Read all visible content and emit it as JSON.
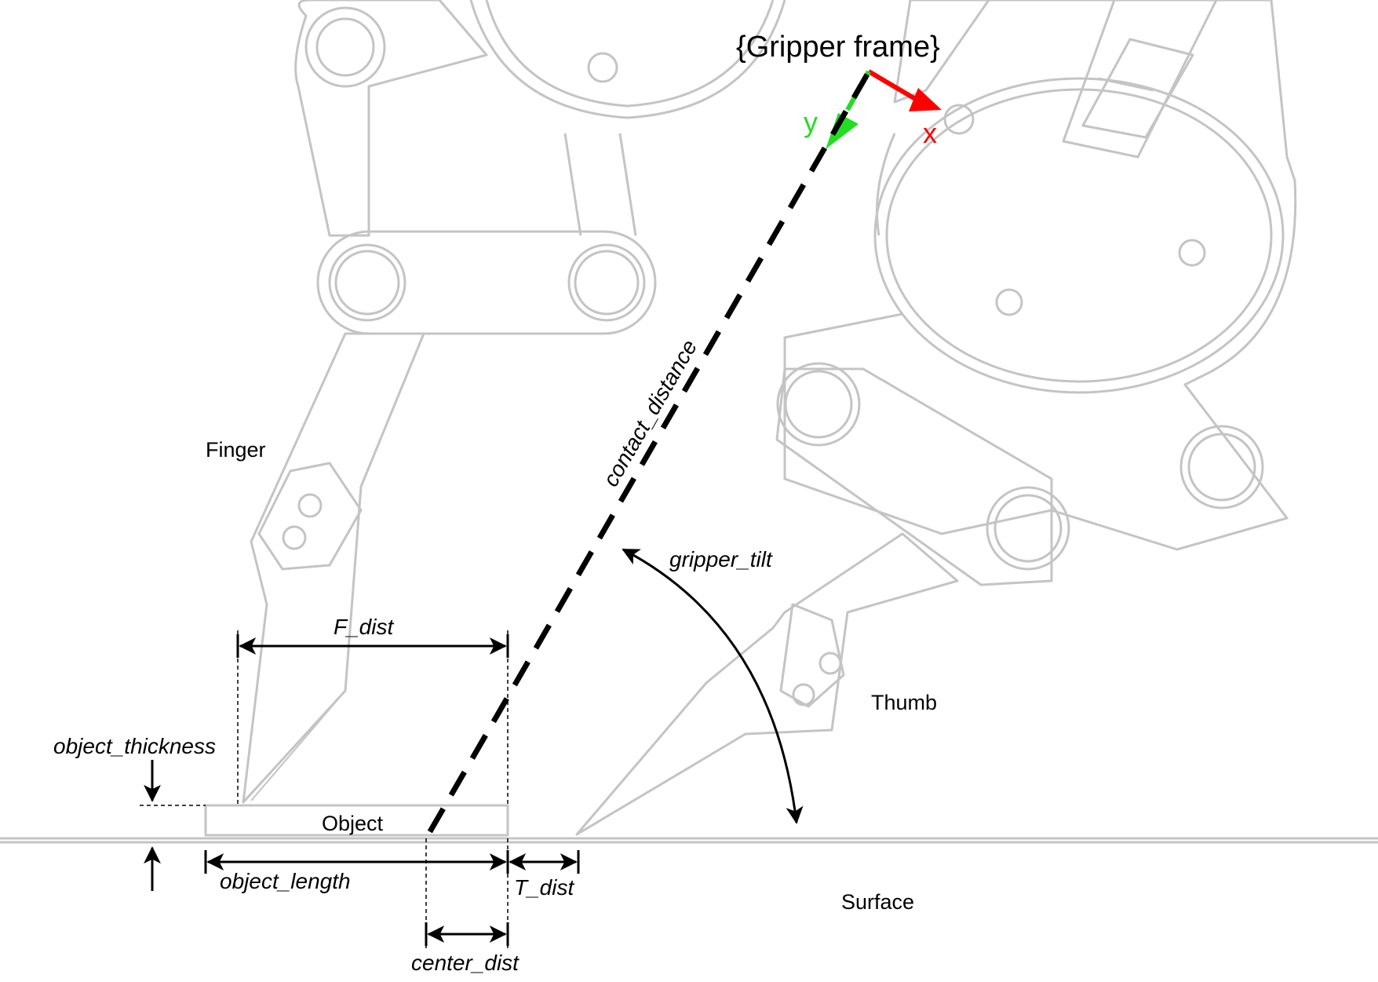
{
  "labels": {
    "gripper_frame": "{Gripper frame}",
    "axis_x": "x",
    "axis_y": "y",
    "finger": "Finger",
    "thumb": "Thumb",
    "object": "Object",
    "surface": "Surface",
    "contact_distance": "contact_distance",
    "gripper_tilt": "gripper_tilt",
    "f_dist": "F_dist",
    "t_dist": "T_dist",
    "object_thickness": "object_thickness",
    "object_length": "object_length",
    "center_dist": "center_dist"
  },
  "colors": {
    "axis_x": "#ff0000",
    "axis_y": "#22dd22",
    "mechanism": "#c4c4c4",
    "dimension": "#000000"
  }
}
